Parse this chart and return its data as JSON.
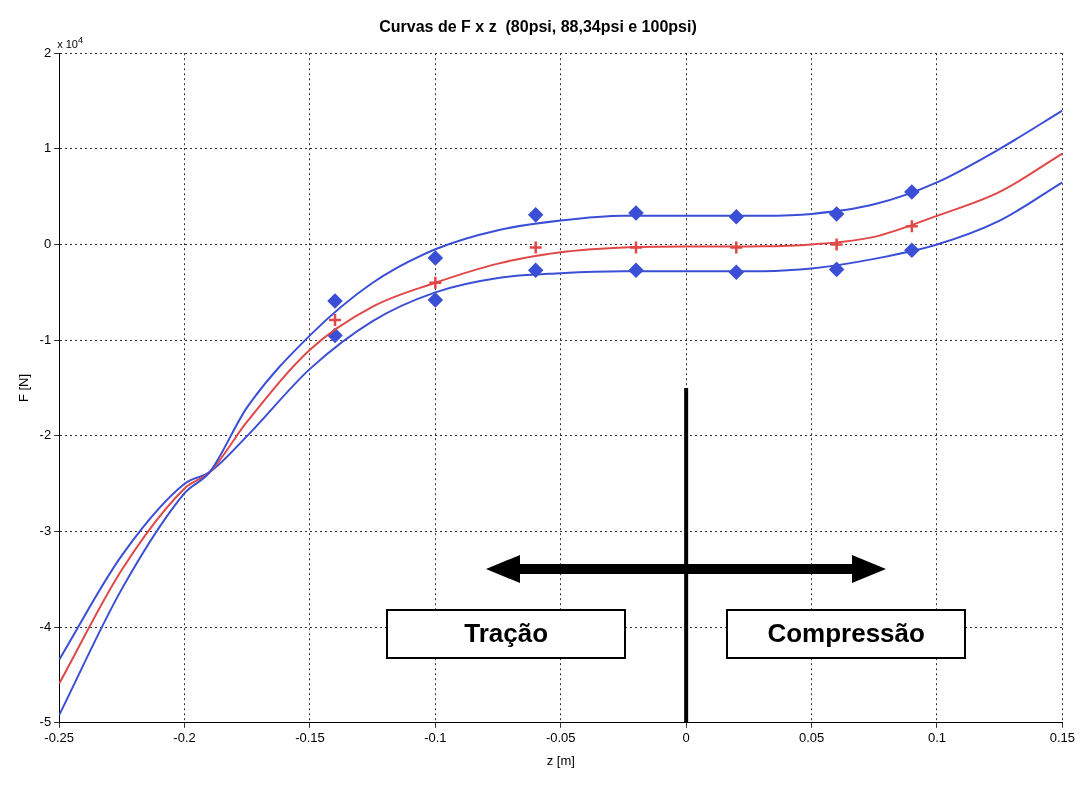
{
  "chart_data": {
    "type": "line",
    "title": "Curvas de F x z  (80psi, 88,34psi e 100psi)",
    "xlabel": "z [m]",
    "ylabel": "F [N]",
    "xlim": [
      -0.25,
      0.15
    ],
    "xticks": [
      -0.25,
      -0.2,
      -0.15,
      -0.1,
      -0.05,
      0,
      0.05,
      0.1,
      0.15
    ],
    "ylim": [
      -5,
      2
    ],
    "yticks": [
      -5,
      -4,
      -3,
      -2,
      -1,
      0,
      1,
      2
    ],
    "grid": true,
    "series": [
      {
        "color": "#3b4fd6",
        "marker": "none",
        "x": [
          -0.25,
          -0.225,
          -0.2,
          -0.19,
          -0.175,
          -0.15,
          -0.125,
          -0.1,
          -0.075,
          -0.05,
          -0.025,
          0,
          0.025,
          0.05,
          0.075,
          0.1,
          0.125,
          0.15
        ],
        "values": [
          -4.92,
          -3.6,
          -2.6,
          -2.38,
          -1.7,
          -0.95,
          -0.4,
          -0.05,
          0.15,
          0.25,
          0.3,
          0.3,
          0.3,
          0.32,
          0.42,
          0.65,
          1.0,
          1.4
        ]
      },
      {
        "color": "#e04848",
        "marker": "none",
        "x": [
          -0.25,
          -0.225,
          -0.2,
          -0.19,
          -0.175,
          -0.15,
          -0.125,
          -0.1,
          -0.075,
          -0.05,
          -0.025,
          0,
          0.025,
          0.05,
          0.075,
          0.1,
          0.125,
          0.15
        ],
        "values": [
          -4.59,
          -3.4,
          -2.55,
          -2.38,
          -1.85,
          -1.1,
          -0.65,
          -0.4,
          -0.2,
          -0.08,
          -0.03,
          -0.02,
          -0.02,
          0,
          0.08,
          0.3,
          0.55,
          0.95
        ]
      },
      {
        "color": "#3b4fd6",
        "marker": "none",
        "x": [
          -0.25,
          -0.225,
          -0.2,
          -0.19,
          -0.175,
          -0.15,
          -0.125,
          -0.1,
          -0.075,
          -0.05,
          -0.025,
          0,
          0.025,
          0.05,
          0.075,
          0.1,
          0.125,
          0.15
        ],
        "values": [
          -4.34,
          -3.25,
          -2.5,
          -2.38,
          -2.0,
          -1.3,
          -0.8,
          -0.5,
          -0.35,
          -0.3,
          -0.28,
          -0.28,
          -0.28,
          -0.25,
          -0.15,
          0.0,
          0.25,
          0.65
        ]
      },
      {
        "type": "scatter",
        "color": "#3b4fd6",
        "marker": "diamond",
        "x": [
          -0.14,
          -0.1,
          -0.06,
          -0.02,
          0.02,
          0.06,
          0.09
        ],
        "values": [
          -0.59,
          -0.14,
          0.31,
          0.33,
          0.29,
          0.32,
          0.55
        ]
      },
      {
        "type": "scatter",
        "color": "#e04848",
        "marker": "cross",
        "x": [
          -0.14,
          -0.1,
          -0.06,
          -0.02,
          0.02,
          0.06,
          0.09
        ],
        "values": [
          -0.79,
          -0.4,
          -0.03,
          -0.03,
          -0.03,
          0,
          0.19
        ]
      },
      {
        "type": "scatter",
        "color": "#3b4fd6",
        "marker": "diamond",
        "x": [
          -0.14,
          -0.1,
          -0.06,
          -0.02,
          0.02,
          0.06,
          0.09
        ],
        "values": [
          -0.95,
          -0.58,
          -0.27,
          -0.27,
          -0.29,
          -0.26,
          -0.06
        ]
      }
    ],
    "ref_lines": [
      {
        "axis": "x",
        "value": 0,
        "color": "#000000"
      }
    ],
    "annotations": [
      "x 10$^{4}$",
      "Tração",
      "Compressão"
    ]
  }
}
